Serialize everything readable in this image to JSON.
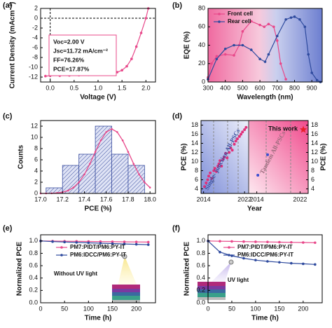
{
  "chart_data": [
    {
      "type": "line",
      "panel_label": "(a)",
      "xlabel": "Voltage (V)",
      "ylabel": "Current Density (mAcm⁻²)",
      "x": [
        -0.1,
        0,
        0.2,
        0.4,
        0.6,
        0.8,
        1.0,
        1.2,
        1.4,
        1.5,
        1.6,
        1.7,
        1.8,
        1.9,
        2.0,
        2.05
      ],
      "values": [
        -11.8,
        -11.72,
        -11.7,
        -11.65,
        -11.6,
        -11.55,
        -11.45,
        -11.3,
        -11.0,
        -10.6,
        -9.8,
        -8.3,
        -5.8,
        -3.0,
        0,
        2
      ],
      "color": "#e8488a",
      "xlim": [
        -0.2,
        2.2
      ],
      "xticks": [
        {
          "value": 0,
          "label": "0.0"
        },
        0.5,
        {
          "value": 1,
          "label": "1.0"
        },
        1.5,
        {
          "value": 2,
          "label": "2.0"
        }
      ],
      "ylim": [
        -13,
        2
      ],
      "yticks": [
        -12,
        -10,
        -8,
        -6,
        -4,
        -2,
        0,
        2
      ],
      "annotations": [
        "Voc=2.00 V",
        "Jsc=11.72 mA/cm⁻²",
        "FF=76.26%",
        "PCE=17.87%"
      ]
    },
    {
      "type": "line",
      "panel_label": "(b)",
      "xlabel": "Wavelength (nm)",
      "ylabel": "EQE (%)",
      "xlim": [
        300,
        960
      ],
      "xticks": [
        300,
        400,
        500,
        600,
        700,
        800,
        900
      ],
      "ylim": [
        0,
        80
      ],
      "yticks": [
        0,
        20,
        40,
        60,
        80
      ],
      "series": [
        {
          "name": "Front cell",
          "color": "#e8488a",
          "x": [
            300,
            320,
            350,
            400,
            450,
            480,
            500,
            550,
            600,
            625,
            650,
            680,
            700,
            720,
            750
          ],
          "values": [
            5,
            20,
            28,
            30,
            29,
            40,
            55,
            66,
            62,
            60,
            63,
            60,
            45,
            20,
            3
          ]
        },
        {
          "name": "Rear  cell",
          "color": "#2e4a9e",
          "x": [
            300,
            350,
            400,
            450,
            500,
            550,
            600,
            630,
            650,
            700,
            750,
            780,
            800,
            830,
            860,
            880,
            900,
            930,
            950
          ],
          "values": [
            3,
            25,
            36,
            40,
            40,
            35,
            25,
            22,
            30,
            50,
            68,
            70,
            71,
            68,
            60,
            30,
            10,
            2,
            0
          ]
        }
      ]
    },
    {
      "type": "histogram",
      "panel_label": "(c)",
      "xlabel": "PCE (%)",
      "ylabel": "Counts",
      "bins": [
        17.05,
        17.2,
        17.35,
        17.5,
        17.65,
        17.8,
        17.95
      ],
      "values": [
        1,
        5,
        7,
        12,
        7,
        5
      ],
      "color": "#3b4fa0",
      "fit": {
        "color": "#e8488a",
        "x": [
          17.0,
          17.05,
          17.1,
          17.15,
          17.2,
          17.25,
          17.3,
          17.35,
          17.4,
          17.45,
          17.5,
          17.55,
          17.6,
          17.65,
          17.7,
          17.75,
          17.8,
          17.85,
          17.9,
          17.95,
          18.0
        ],
        "values": [
          0.003,
          0.01,
          0.03,
          0.09,
          0.22,
          0.5,
          1.05,
          1.98,
          3.39,
          5.27,
          7.41,
          9.46,
          10.95,
          11.5,
          10.95,
          9.46,
          7.41,
          5.27,
          3.39,
          1.98,
          1.05
        ]
      },
      "xlim": [
        17.0,
        18.05
      ],
      "xticks": [
        {
          "value": 17,
          "label": "17.0"
        },
        17.2,
        17.4,
        17.6,
        17.8,
        {
          "value": 18,
          "label": "18.0"
        }
      ],
      "ylim": [
        0,
        13
      ],
      "yticks": [
        0,
        2,
        4,
        6,
        8,
        10,
        12
      ]
    },
    {
      "type": "scatter",
      "panel_label": "(d)",
      "xlabel": "Year",
      "ylabel": "PCE (%)",
      "y2label": "PCE (%)",
      "ylim": [
        3,
        19
      ],
      "yticks": [
        4,
        6,
        8,
        10,
        12,
        14,
        16,
        18
      ],
      "y2ticks": [
        4,
        6,
        8,
        10,
        12,
        14,
        16,
        18
      ],
      "sections": [
        {
          "label": "Single- junction All-PSCs",
          "color": "#e0307a",
          "xlim": [
            2013.5,
            2022.8
          ],
          "xticks": [
            2014,
            2022
          ],
          "x": [
            2014.2,
            2014.5,
            2014.8,
            2015.0,
            2015.3,
            2015.6,
            2016.0,
            2016.2,
            2016.5,
            2016.8,
            2017.0,
            2017.2,
            2017.5,
            2017.8,
            2018.0,
            2018.3,
            2018.6,
            2019.0,
            2019.3,
            2019.6,
            2020.0,
            2020.3,
            2020.6,
            2021.0,
            2021.3,
            2021.6,
            2022.0,
            2022.3
          ],
          "values": [
            4.5,
            5.3,
            6.0,
            6.8,
            7.5,
            6.3,
            8.0,
            8.5,
            7.8,
            9.0,
            9.5,
            10.2,
            9.0,
            10.5,
            11.0,
            11.8,
            10.8,
            12.0,
            13.0,
            12.5,
            13.8,
            14.5,
            15.0,
            15.5,
            16.0,
            16.5,
            17.0,
            17.5
          ]
        },
        {
          "label": "Tandem All-PSCs",
          "color": "#3b4fd0",
          "xlim": [
            2012.5,
            2023.5
          ],
          "xticks": [
            2014,
            2022
          ],
          "x": [
            2014.2,
            2016.0
          ],
          "values": [
            7.0,
            11.5
          ]
        }
      ],
      "highlight": {
        "label": "This work",
        "color": "#e8202a",
        "x": 2022.6,
        "value": 17.0
      }
    },
    {
      "type": "line",
      "panel_label": "(e)",
      "xlabel": "Time (h)",
      "ylabel": "Normalized PCE",
      "annotation": "Without UV light",
      "x": [
        0,
        25,
        50,
        75,
        100,
        125,
        150,
        175,
        200,
        225
      ],
      "xlim": [
        0,
        240
      ],
      "xticks": [
        0,
        50,
        100,
        150,
        200
      ],
      "ylim": [
        0,
        1.1
      ],
      "yticks": [
        {
          "value": 0,
          "label": "0.0"
        },
        0.2,
        0.4,
        0.6,
        0.8,
        {
          "value": 1,
          "label": "1.0"
        }
      ],
      "series": [
        {
          "name": "PM7:PIDT/PM6:PY-IT",
          "color": "#e8488a",
          "values": [
            1,
            0.998,
            0.996,
            0.994,
            0.992,
            0.99,
            0.988,
            0.986,
            0.984,
            0.982
          ]
        },
        {
          "name": "PM6:IDCC/PM6:PY-IT",
          "color": "#2e4a9e",
          "values": [
            1,
            0.99,
            0.983,
            0.976,
            0.97,
            0.964,
            0.958,
            0.952,
            0.946,
            0.94
          ]
        }
      ]
    },
    {
      "type": "line",
      "panel_label": "(f)",
      "xlabel": "Time (h)",
      "ylabel": "Normalized PCE",
      "annotation": "UV light",
      "x": [
        0,
        25,
        50,
        75,
        100,
        125,
        150,
        175,
        200,
        225
      ],
      "xlim": [
        0,
        240
      ],
      "xticks": [
        0,
        50,
        100,
        150,
        200
      ],
      "ylim": [
        0,
        1.1
      ],
      "yticks": [
        {
          "value": 0,
          "label": "0.0"
        },
        0.2,
        0.4,
        0.6,
        0.8,
        {
          "value": 1,
          "label": "1.0"
        }
      ],
      "series": [
        {
          "name": "PM7:PIDT/PM6:PY-IT",
          "color": "#e8488a",
          "values": [
            1,
            0.996,
            0.993,
            0.99,
            0.987,
            0.984,
            0.981,
            0.978,
            0.975,
            0.972
          ]
        },
        {
          "name": "PM6:IDCC/PM6:PY-IT",
          "color": "#2e4a9e",
          "values": [
            1,
            0.82,
            0.76,
            0.72,
            0.69,
            0.67,
            0.655,
            0.64,
            0.63,
            0.62
          ]
        }
      ]
    }
  ]
}
